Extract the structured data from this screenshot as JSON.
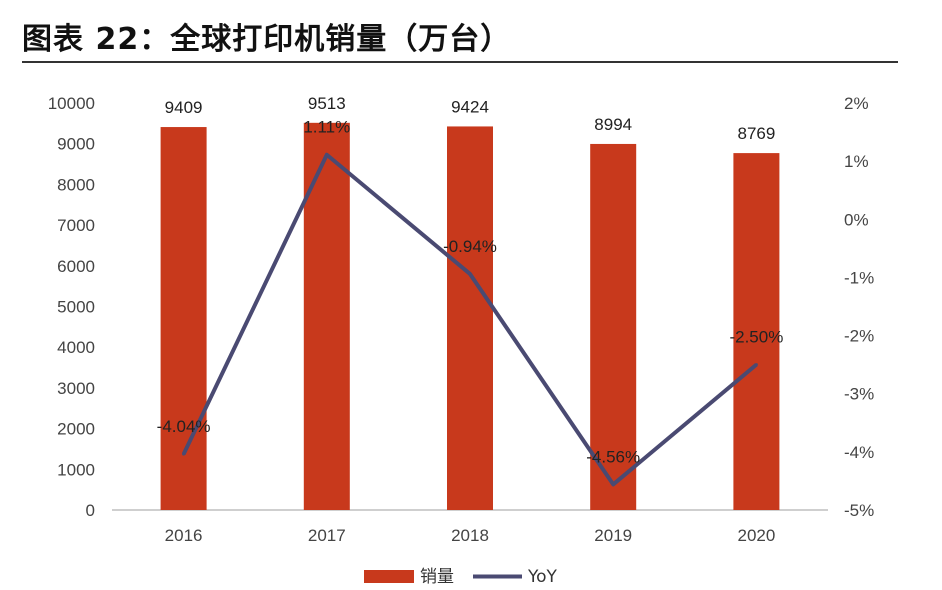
{
  "title": "图表 22：全球打印机销量（万台）",
  "colors": {
    "bar": "#c8391c",
    "line": "#4a4a72",
    "axis": "#bfbfbf"
  },
  "chart_data": {
    "type": "bar",
    "categories": [
      "2016",
      "2017",
      "2018",
      "2019",
      "2020"
    ],
    "series": [
      {
        "name": "销量",
        "type": "bar",
        "axis": "left",
        "values": [
          9409,
          9513,
          9424,
          8994,
          8769
        ],
        "labels": [
          "9409",
          "9513",
          "9424",
          "8994",
          "8769"
        ]
      },
      {
        "name": "YoY",
        "type": "line",
        "axis": "right",
        "values": [
          -4.04,
          1.11,
          -0.94,
          -4.56,
          -2.5
        ],
        "labels": [
          "-4.04%",
          "1.11%",
          "-0.94%",
          "-4.56%",
          "-2.50%"
        ]
      }
    ],
    "ylim": [
      0,
      10000
    ],
    "yticks": [
      "0",
      "1000",
      "2000",
      "3000",
      "4000",
      "5000",
      "6000",
      "7000",
      "8000",
      "9000",
      "10000"
    ],
    "y2lim": [
      -5,
      2
    ],
    "y2ticks": [
      "-5%",
      "-4%",
      "-3%",
      "-2%",
      "-1%",
      "0%",
      "1%",
      "2%"
    ],
    "legend_position": "bottom-center"
  }
}
